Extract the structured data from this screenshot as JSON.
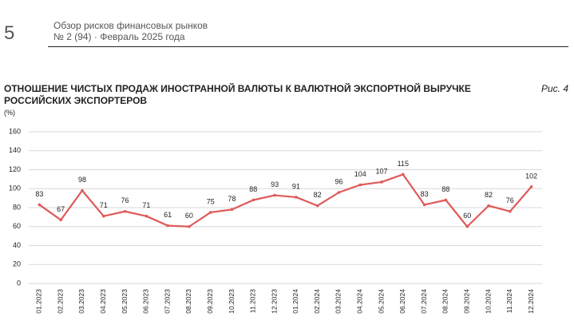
{
  "header": {
    "page": "5",
    "title": "Обзор рисков финансовых рынков",
    "issue": "№ 2 (94) · Февраль 2025 года"
  },
  "chart_data": {
    "type": "line",
    "title": "ОТНОШЕНИЕ ЧИСТЫХ ПРОДАЖ ИНОСТРАННОЙ ВАЛЮТЫ К ВАЛЮТНОЙ ЭКСПОРТНОЙ ВЫРУЧКЕ РОССИЙСКИХ ЭКСПОРТЕРОВ",
    "figure": "Рис. 4",
    "y_label": "(%)",
    "categories": [
      "01.2023",
      "02.2023",
      "03.2023",
      "04.2023",
      "05.2023",
      "06.2023",
      "07.2023",
      "08.2023",
      "09.2023",
      "10.2023",
      "11.2023",
      "12.2023",
      "01.2024",
      "02.2024",
      "03.2024",
      "04.2024",
      "05.2024",
      "06.2024",
      "07.2024",
      "08.2024",
      "09.2024",
      "10.2024",
      "11.2024",
      "12.2024"
    ],
    "series": [
      {
        "color": "#e05a5a",
        "values": [
          83,
          67,
          98,
          71,
          76,
          71,
          61,
          60,
          75,
          78,
          88,
          93,
          91,
          82,
          96,
          104,
          107,
          115,
          83,
          88,
          60,
          82,
          76,
          102
        ]
      }
    ],
    "ylim": [
      0,
      160
    ],
    "yticks": [
      0,
      20,
      40,
      60,
      80,
      100,
      120,
      140,
      160
    ],
    "grid": true,
    "data_labels": true
  }
}
